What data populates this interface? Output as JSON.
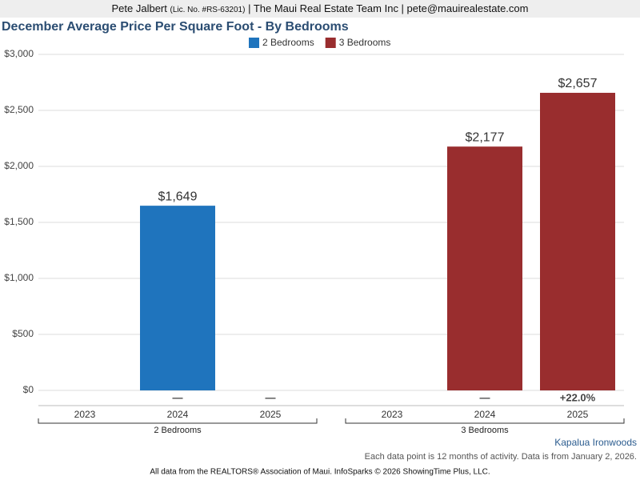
{
  "header": {
    "name": "Pete Jalbert",
    "license": "(Lic. No. #RS-63201)",
    "rest": "| The Maui Real Estate Team Inc | pete@mauirealestate.com"
  },
  "chart_data": {
    "type": "bar",
    "title": "December Average Price Per Square Foot - By Bedrooms",
    "categories": [
      "2023",
      "2024",
      "2025"
    ],
    "series": [
      {
        "name": "2 Bedrooms",
        "color": "#1f74bd",
        "values": [
          null,
          1649,
          null
        ],
        "value_labels": [
          null,
          "$1,649",
          null
        ],
        "change_labels": [
          null,
          "—",
          "—"
        ]
      },
      {
        "name": "3 Bedrooms",
        "color": "#992d2e",
        "values": [
          null,
          2177,
          2657
        ],
        "value_labels": [
          null,
          "$2,177",
          "$2,657"
        ],
        "change_labels": [
          null,
          "—",
          "+22.0%"
        ]
      }
    ],
    "ylim": [
      0,
      3000
    ],
    "yticks": [
      {
        "value": 0,
        "label": "$0"
      },
      {
        "value": 500,
        "label": "$500"
      },
      {
        "value": 1000,
        "label": "$1,000"
      },
      {
        "value": 1500,
        "label": "$1,500"
      },
      {
        "value": 2000,
        "label": "$2,000"
      },
      {
        "value": 2500,
        "label": "$2,500"
      },
      {
        "value": 3000,
        "label": "$3,000"
      }
    ],
    "grid": true
  },
  "footer": {
    "area": "Kapalua Ironwoods",
    "note": "Each data point is 12 months of activity. Data is from January 2, 2026.",
    "source": "All data from the REALTORS® Association of Maui. InfoSparks © 2026 ShowingTime Plus, LLC."
  }
}
